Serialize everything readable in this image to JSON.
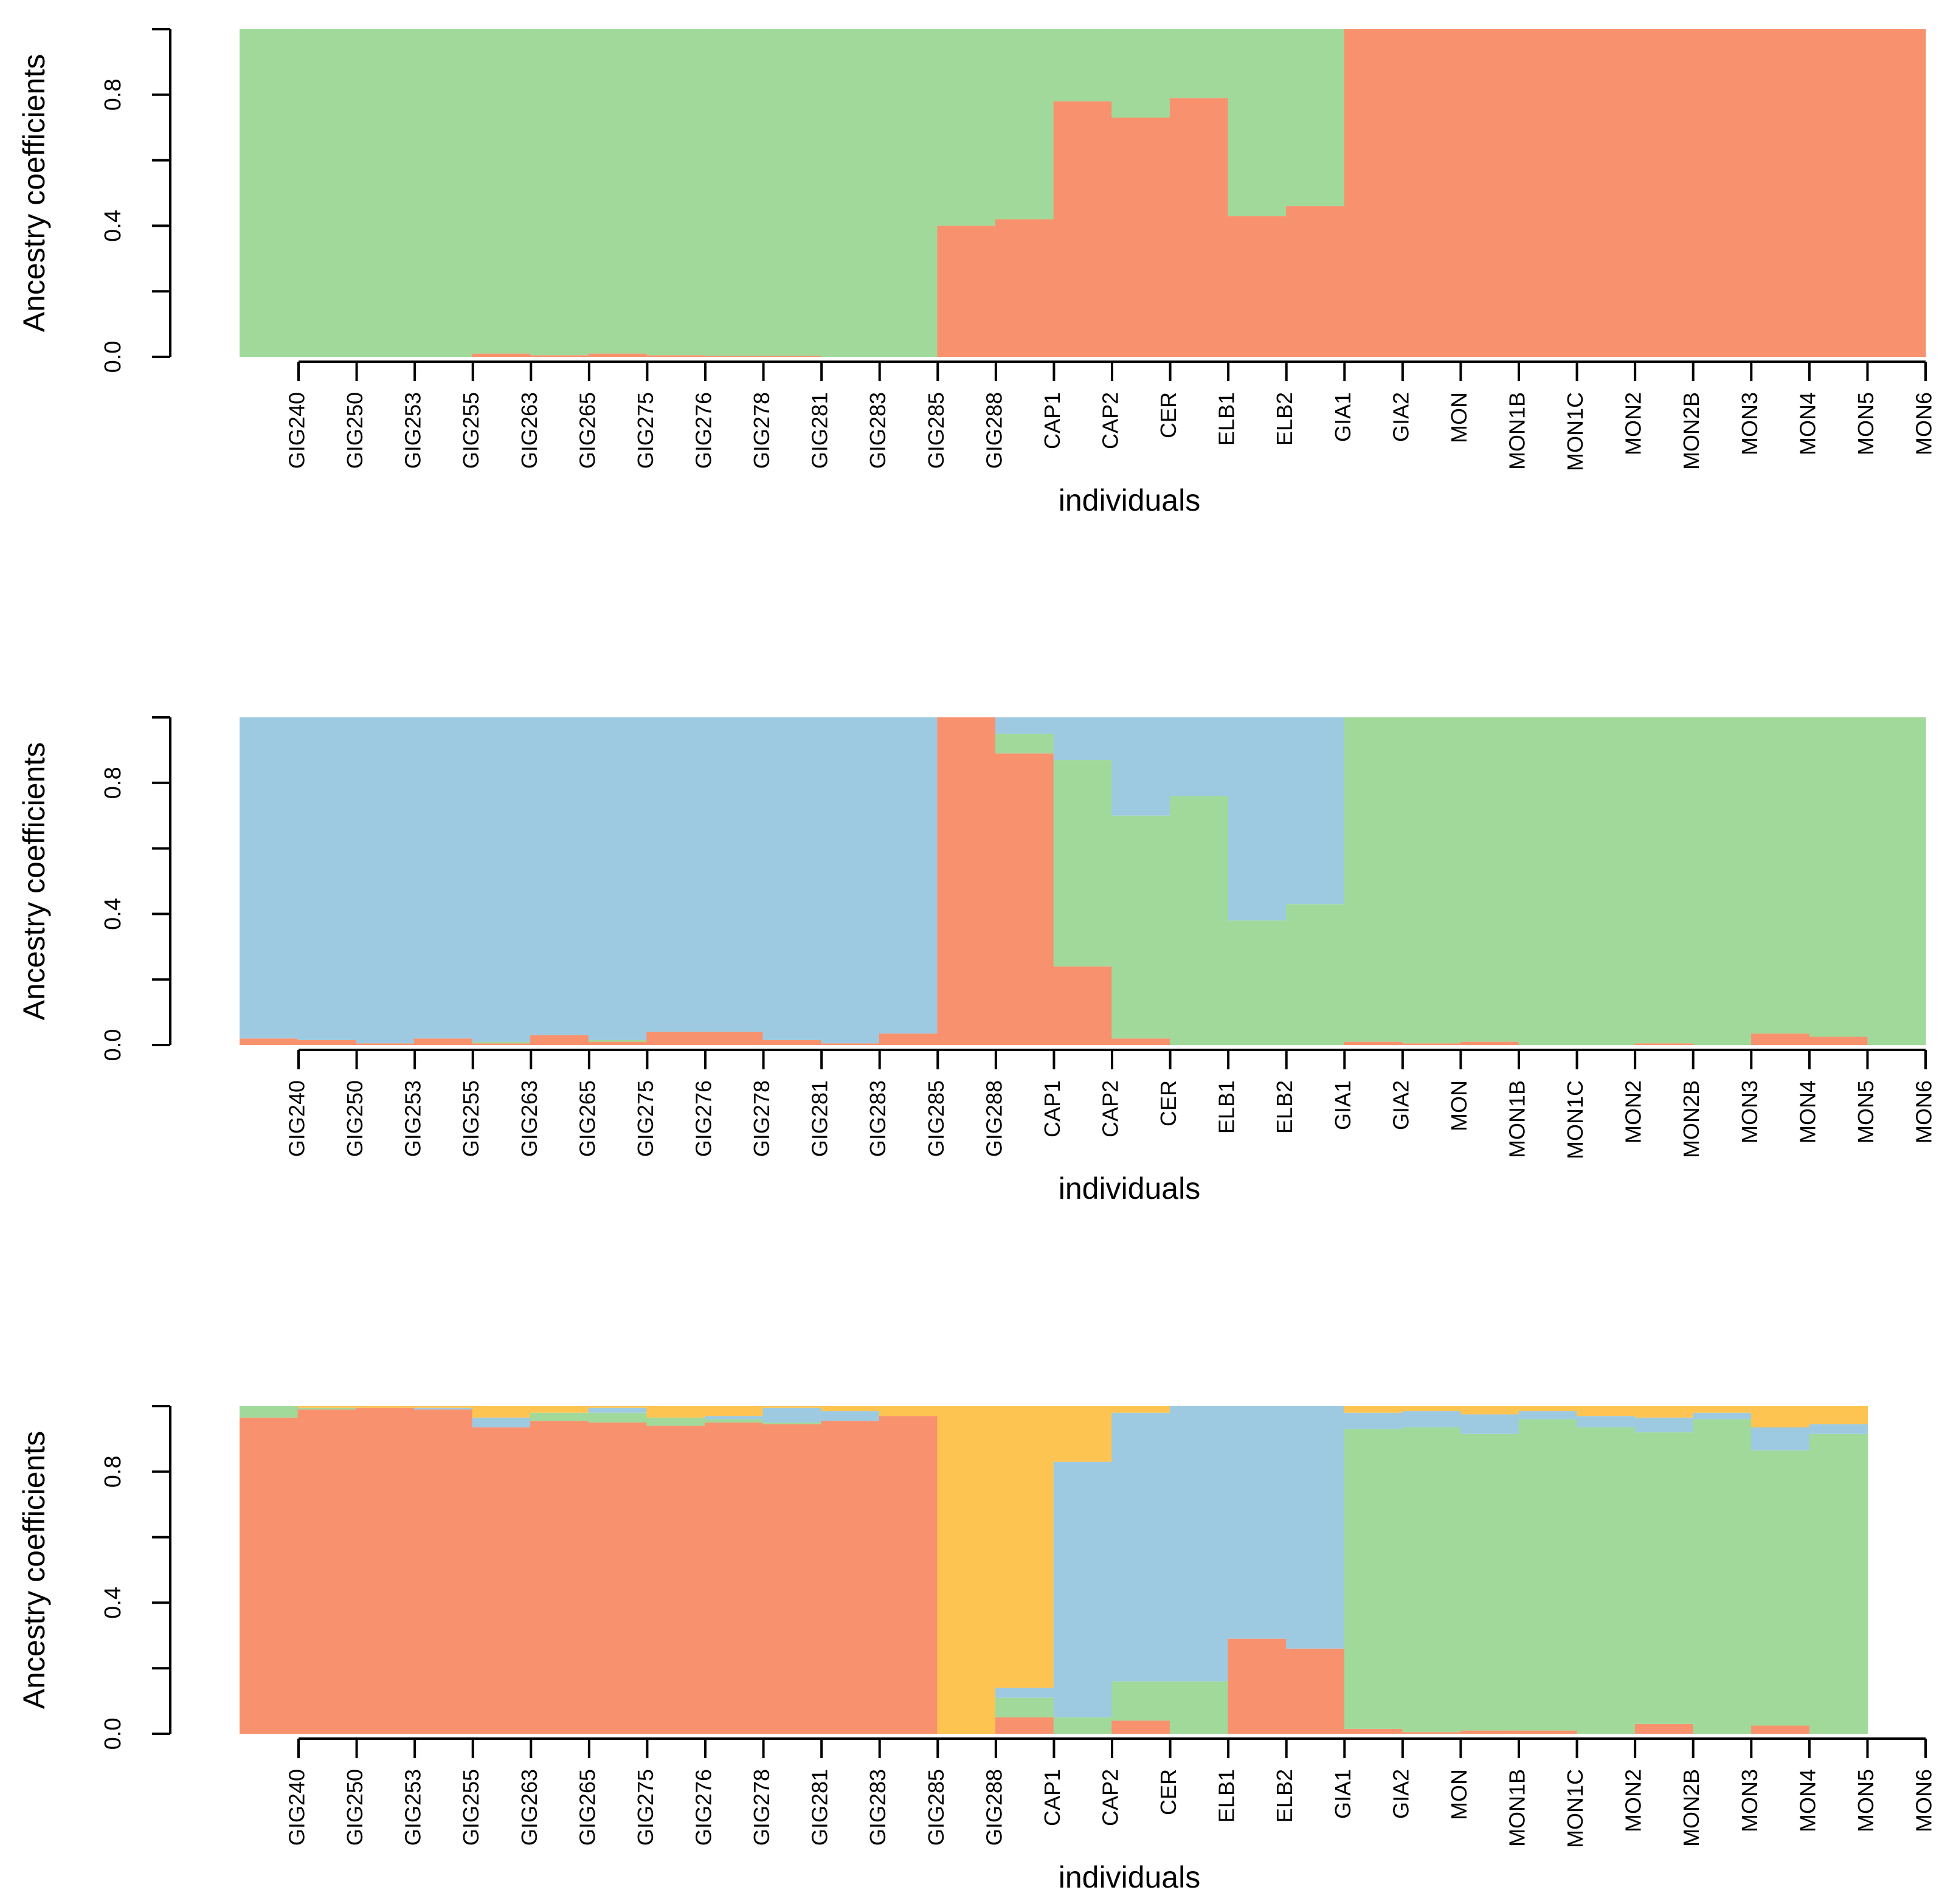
{
  "chart_data": [
    {
      "type": "bar",
      "stacked": true,
      "title": "",
      "xlabel": "individuals",
      "ylabel": "Ancestry coefficients",
      "ylim": [
        0,
        1
      ],
      "yticks": [
        "0.0",
        "0.4",
        "0.8"
      ],
      "categories": [
        "GIG240",
        "GIG250",
        "GIG253",
        "GIG255",
        "GIG263",
        "GIG265",
        "GIG275",
        "GIG276",
        "GIG278",
        "GIG281",
        "GIG283",
        "GIG285",
        "GIG288",
        "CAP1",
        "CAP2",
        "CER",
        "ELB1",
        "ELB2",
        "GIA1",
        "GIA2",
        "MON",
        "MON1B",
        "MON1C",
        "MON2",
        "MON2B",
        "MON3",
        "MON4",
        "MON5",
        "MON6"
      ],
      "series": [
        {
          "name": "cluster-orange",
          "color": "#f8926e",
          "values": [
            0,
            0,
            0,
            0,
            0.01,
            0.005,
            0.01,
            0.005,
            0.003,
            0.003,
            0,
            0,
            0.4,
            0.42,
            0.78,
            0.73,
            0.79,
            0.43,
            0.46,
            1,
            1,
            1,
            1,
            1,
            1,
            1,
            1,
            1,
            1
          ]
        },
        {
          "name": "cluster-green",
          "color": "#a1d99b",
          "values": [
            1,
            1,
            1,
            1,
            0.99,
            0.995,
            0.99,
            0.995,
            0.997,
            0.997,
            1,
            1,
            0.6,
            0.58,
            0.22,
            0.27,
            0.21,
            0.57,
            0.54,
            0,
            0,
            0,
            0,
            0,
            0,
            0,
            0,
            0,
            0
          ]
        }
      ]
    },
    {
      "type": "bar",
      "stacked": true,
      "title": "",
      "xlabel": "individuals",
      "ylabel": "Ancestry coefficients",
      "ylim": [
        0,
        1
      ],
      "yticks": [
        "0.0",
        "0.4",
        "0.8"
      ],
      "categories": [
        "GIG240",
        "GIG250",
        "GIG253",
        "GIG255",
        "GIG263",
        "GIG265",
        "GIG275",
        "GIG276",
        "GIG278",
        "GIG281",
        "GIG283",
        "GIG285",
        "GIG288",
        "CAP1",
        "CAP2",
        "CER",
        "ELB1",
        "ELB2",
        "GIA1",
        "GIA2",
        "MON",
        "MON1B",
        "MON1C",
        "MON2",
        "MON2B",
        "MON3",
        "MON4",
        "MON5",
        "MON6"
      ],
      "series": [
        {
          "name": "cluster-orange",
          "color": "#f8926e",
          "values": [
            0.02,
            0.015,
            0.005,
            0.02,
            0.005,
            0.03,
            0.01,
            0.04,
            0.04,
            0.015,
            0.005,
            0.035,
            1,
            0.89,
            0.24,
            0.02,
            0,
            0,
            0,
            0.01,
            0.005,
            0.01,
            0,
            0,
            0.005,
            0,
            0.035,
            0.025,
            0
          ]
        },
        {
          "name": "cluster-green",
          "color": "#a1d99b",
          "values": [
            0,
            0,
            0,
            0,
            0.005,
            0,
            0.005,
            0,
            0,
            0,
            0,
            0,
            0,
            0.06,
            0.63,
            0.68,
            0.76,
            0.38,
            0.43,
            0.99,
            0.995,
            0.99,
            1,
            1,
            0.995,
            1,
            0.965,
            0.975,
            1
          ]
        },
        {
          "name": "cluster-blue",
          "color": "#9ecae1",
          "values": [
            0.98,
            0.985,
            0.995,
            0.98,
            0.99,
            0.97,
            0.985,
            0.96,
            0.96,
            0.985,
            0.995,
            0.965,
            0,
            0.05,
            0.13,
            0.3,
            0.24,
            0.62,
            0.57,
            0,
            0,
            0,
            0,
            0,
            0,
            0,
            0,
            0,
            0
          ]
        }
      ]
    },
    {
      "type": "bar",
      "stacked": true,
      "title": "",
      "xlabel": "individuals",
      "ylabel": "Ancestry coefficients",
      "ylim": [
        0,
        1
      ],
      "yticks": [
        "0.0",
        "0.4",
        "0.8"
      ],
      "categories": [
        "GIG240",
        "GIG250",
        "GIG253",
        "GIG255",
        "GIG263",
        "GIG265",
        "GIG275",
        "GIG276",
        "GIG278",
        "GIG281",
        "GIG283",
        "GIG285",
        "GIG288",
        "CAP1",
        "CAP2",
        "CER",
        "ELB1",
        "ELB2",
        "GIA1",
        "GIA2",
        "MON",
        "MON1B",
        "MON1C",
        "MON2",
        "MON2B",
        "MON3",
        "MON4",
        "MON5",
        "MON6"
      ],
      "series": [
        {
          "name": "cluster-orange",
          "color": "#f8926e",
          "values": [
            0.965,
            0.99,
            0.995,
            0.99,
            0.935,
            0.955,
            0.95,
            0.94,
            0.95,
            0.945,
            0.955,
            0.97,
            0,
            0.05,
            0,
            0.04,
            0,
            0.29,
            0.26,
            0.015,
            0.005,
            0.01,
            0.01,
            0,
            0.03,
            0,
            0.025,
            0,
            0
          ]
        },
        {
          "name": "cluster-green",
          "color": "#a1d99b",
          "values": [
            0.035,
            0.005,
            0,
            0,
            0,
            0.025,
            0.03,
            0.025,
            0.01,
            0.005,
            0,
            0,
            0,
            0.06,
            0.05,
            0.12,
            0.16,
            0,
            0,
            0.915,
            0.93,
            0.905,
            0.95,
            0.935,
            0.89,
            0.96,
            0.84,
            0.915,
            0
          ]
        },
        {
          "name": "cluster-blue",
          "color": "#9ecae1",
          "values": [
            0,
            0,
            0,
            0.005,
            0.03,
            0,
            0.015,
            0,
            0.01,
            0.045,
            0.03,
            0,
            0,
            0.03,
            0.78,
            0.82,
            0.84,
            0.71,
            0.74,
            0.05,
            0.05,
            0.06,
            0.025,
            0.035,
            0.045,
            0.02,
            0.07,
            0.03,
            0
          ]
        },
        {
          "name": "cluster-yellow",
          "color": "#fdc451",
          "values": [
            0,
            0.005,
            0.005,
            0.005,
            0.035,
            0.02,
            0.005,
            0.035,
            0.03,
            0.005,
            0.015,
            0.03,
            1,
            0.86,
            0.17,
            0.02,
            0,
            0,
            0,
            0.02,
            0.015,
            0.025,
            0.015,
            0.03,
            0.035,
            0.02,
            0.065,
            0.055,
            0
          ]
        }
      ]
    }
  ]
}
